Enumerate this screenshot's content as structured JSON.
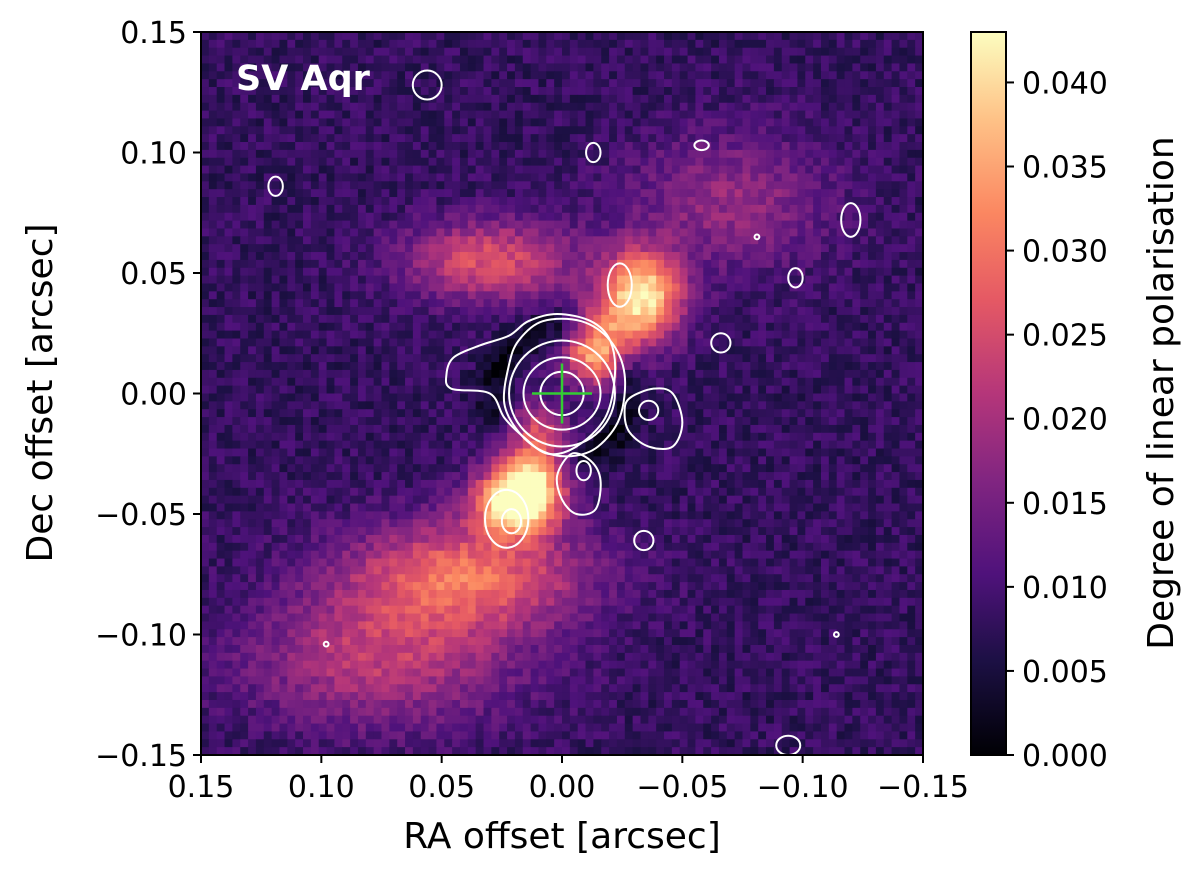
{
  "chart_data": {
    "type": "heatmap",
    "object_label": "SV Aqr",
    "xlabel": "RA offset [arcsec]",
    "ylabel": "Dec offset [arcsec]",
    "xlim": [
      0.15,
      -0.15
    ],
    "ylim": [
      -0.15,
      0.15
    ],
    "x_ticks": [
      0.15,
      0.1,
      0.05,
      0.0,
      -0.05,
      -0.1,
      -0.15
    ],
    "x_tick_labels": [
      "0.15",
      "0.10",
      "0.05",
      "0.00",
      "−0.05",
      "−0.10",
      "−0.15"
    ],
    "y_ticks": [
      -0.15,
      -0.1,
      -0.05,
      0.0,
      0.05,
      0.1,
      0.15
    ],
    "y_tick_labels": [
      "−0.15",
      "−0.10",
      "−0.05",
      "0.00",
      "0.05",
      "0.10",
      "0.15"
    ],
    "colormap": "magma",
    "colorbar_label": "Degree of linear polarisation",
    "colorbar_range": [
      0.0,
      0.043
    ],
    "colorbar_ticks": [
      0.0,
      0.005,
      0.01,
      0.015,
      0.02,
      0.025,
      0.03,
      0.035,
      0.04
    ],
    "colorbar_tick_labels": [
      "0.000",
      "0.005",
      "0.010",
      "0.015",
      "0.020",
      "0.025",
      "0.030",
      "0.035",
      "0.040"
    ],
    "map_features": [
      {
        "name": "bright-arc-north-west",
        "x": -0.033,
        "y": 0.04,
        "peak": 0.034,
        "sx": 0.012,
        "sy": 0.013
      },
      {
        "name": "bright-knot-east-center",
        "x": -0.015,
        "y": 0.018,
        "peak": 0.031,
        "sx": 0.009,
        "sy": 0.01
      },
      {
        "name": "bright-arc-south-east",
        "x": 0.012,
        "y": -0.028,
        "peak": 0.029,
        "sx": 0.01,
        "sy": 0.014
      },
      {
        "name": "bright-arc-south-lobe",
        "x": 0.02,
        "y": -0.045,
        "peak": 0.033,
        "sx": 0.012,
        "sy": 0.009
      },
      {
        "name": "diffuse-arc-south",
        "x": 0.04,
        "y": -0.075,
        "peak": 0.021,
        "sx": 0.035,
        "sy": 0.016
      },
      {
        "name": "diffuse-glow-north",
        "x": 0.03,
        "y": 0.055,
        "peak": 0.018,
        "sx": 0.025,
        "sy": 0.012
      },
      {
        "name": "diffuse-glow-south-west",
        "x": 0.075,
        "y": -0.11,
        "peak": 0.014,
        "sx": 0.04,
        "sy": 0.02
      },
      {
        "name": "diffuse-glow-north-east",
        "x": -0.07,
        "y": 0.08,
        "peak": 0.01,
        "sx": 0.03,
        "sy": 0.02
      }
    ],
    "background_level": 0.008,
    "central_dark_ring": {
      "x": 0.0,
      "y": 0.0,
      "radius": 0.028,
      "width": 0.01,
      "depth": 0.007
    },
    "star_marker": {
      "x": 0.0,
      "y": 0.0,
      "color": "#33cc33"
    },
    "contours": [
      {
        "type": "ellipse",
        "x": 0.0,
        "y": 0.0,
        "rx": 0.009,
        "ry": 0.009
      },
      {
        "type": "ellipse",
        "x": 0.0,
        "y": 0.0,
        "rx": 0.016,
        "ry": 0.015
      },
      {
        "type": "ellipse",
        "x": 0.0,
        "y": 0.0,
        "rx": 0.022,
        "ry": 0.022
      },
      {
        "type": "path",
        "points": [
          [
            0.018,
            0.022
          ],
          [
            0.008,
            0.03
          ],
          [
            -0.008,
            0.03
          ],
          [
            -0.02,
            0.022
          ],
          [
            -0.026,
            0.008
          ],
          [
            -0.024,
            -0.01
          ],
          [
            -0.015,
            -0.022
          ],
          [
            -0.004,
            -0.026
          ],
          [
            0.008,
            -0.024
          ],
          [
            0.018,
            -0.016
          ],
          [
            0.024,
            -0.004
          ],
          [
            0.022,
            0.012
          ]
        ]
      },
      {
        "type": "path",
        "points": [
          [
            0.045,
            0.015
          ],
          [
            0.034,
            0.02
          ],
          [
            0.022,
            0.024
          ],
          [
            0.014,
            0.03
          ],
          [
            0.002,
            0.033
          ],
          [
            -0.012,
            0.03
          ],
          [
            -0.02,
            0.022
          ],
          [
            -0.022,
            0.008
          ],
          [
            -0.018,
            -0.01
          ],
          [
            -0.006,
            -0.022
          ],
          [
            0.006,
            -0.025
          ],
          [
            0.016,
            -0.018
          ],
          [
            0.024,
            -0.01
          ],
          [
            0.03,
            0.0
          ],
          [
            0.046,
            0.002
          ],
          [
            0.048,
            0.008
          ]
        ]
      },
      {
        "type": "path",
        "points": [
          [
            -0.004,
            -0.025
          ],
          [
            -0.012,
            -0.028
          ],
          [
            -0.016,
            -0.036
          ],
          [
            -0.014,
            -0.048
          ],
          [
            -0.006,
            -0.05
          ],
          [
            0.0,
            -0.044
          ],
          [
            0.002,
            -0.034
          ]
        ]
      },
      {
        "type": "ellipse",
        "x": -0.009,
        "y": -0.032,
        "rx": 0.003,
        "ry": 0.004
      },
      {
        "type": "path",
        "points": [
          [
            -0.028,
            -0.002
          ],
          [
            -0.038,
            0.002
          ],
          [
            -0.046,
            0.0
          ],
          [
            -0.05,
            -0.012
          ],
          [
            -0.046,
            -0.022
          ],
          [
            -0.036,
            -0.022
          ],
          [
            -0.028,
            -0.016
          ],
          [
            -0.026,
            -0.008
          ]
        ]
      },
      {
        "type": "ellipse",
        "x": -0.036,
        "y": -0.007,
        "rx": 0.004,
        "ry": 0.004
      },
      {
        "type": "ellipse",
        "x": 0.023,
        "y": -0.052,
        "rx": 0.009,
        "ry": 0.012
      },
      {
        "type": "ellipse",
        "x": 0.021,
        "y": -0.053,
        "rx": 0.004,
        "ry": 0.005
      },
      {
        "type": "ellipse",
        "x": -0.024,
        "y": 0.045,
        "rx": 0.005,
        "ry": 0.009
      },
      {
        "type": "ellipse",
        "x": 0.056,
        "y": 0.128,
        "rx": 0.006,
        "ry": 0.006
      },
      {
        "type": "ellipse",
        "x": -0.013,
        "y": 0.1,
        "rx": 0.003,
        "ry": 0.004
      },
      {
        "type": "ellipse",
        "x": -0.058,
        "y": 0.103,
        "rx": 0.003,
        "ry": 0.002
      },
      {
        "type": "ellipse",
        "x": 0.119,
        "y": 0.086,
        "rx": 0.003,
        "ry": 0.004
      },
      {
        "type": "ellipse",
        "x": -0.12,
        "y": 0.072,
        "rx": 0.004,
        "ry": 0.007
      },
      {
        "type": "ellipse",
        "x": -0.081,
        "y": 0.065,
        "rx": 0.001,
        "ry": 0.001
      },
      {
        "type": "ellipse",
        "x": -0.097,
        "y": 0.048,
        "rx": 0.003,
        "ry": 0.004
      },
      {
        "type": "ellipse",
        "x": -0.066,
        "y": 0.021,
        "rx": 0.004,
        "ry": 0.004
      },
      {
        "type": "ellipse",
        "x": -0.034,
        "y": -0.061,
        "rx": 0.004,
        "ry": 0.004
      },
      {
        "type": "ellipse",
        "x": 0.098,
        "y": -0.104,
        "rx": 0.001,
        "ry": 0.001
      },
      {
        "type": "ellipse",
        "x": -0.114,
        "y": -0.1,
        "rx": 0.001,
        "ry": 0.001
      },
      {
        "type": "ellipse",
        "x": -0.094,
        "y": -0.146,
        "rx": 0.005,
        "ry": 0.004
      }
    ]
  }
}
